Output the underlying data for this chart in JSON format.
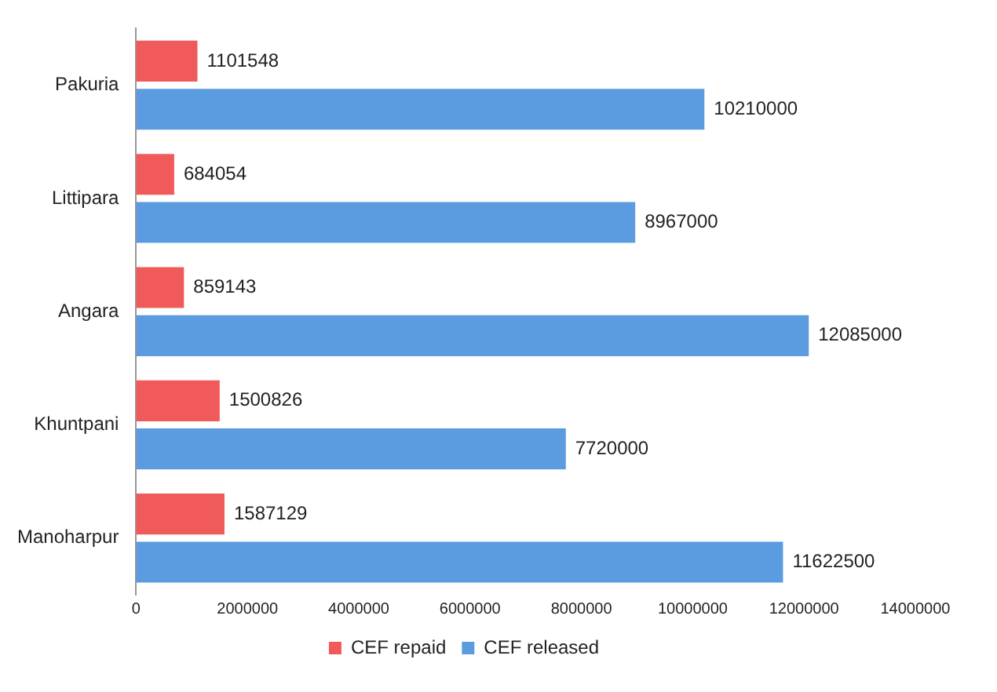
{
  "chart_data": {
    "type": "bar",
    "orientation": "horizontal",
    "categories": [
      "Pakuria",
      "Littipara",
      "Angara",
      "Khuntpani",
      "Manoharpur"
    ],
    "series": [
      {
        "name": "CEF repaid",
        "color": "#f05a5a",
        "values": [
          1101548,
          684054,
          859143,
          1500826,
          1587129
        ]
      },
      {
        "name": "CEF released",
        "color": "#5b9be0",
        "values": [
          10210000,
          8967000,
          12085000,
          7720000,
          11622500
        ]
      }
    ],
    "xlim": [
      0,
      14000000
    ],
    "xticks": [
      0,
      2000000,
      4000000,
      6000000,
      8000000,
      10000000,
      12000000,
      14000000
    ],
    "grid": false,
    "legend": "bottom",
    "data_labels": true
  }
}
